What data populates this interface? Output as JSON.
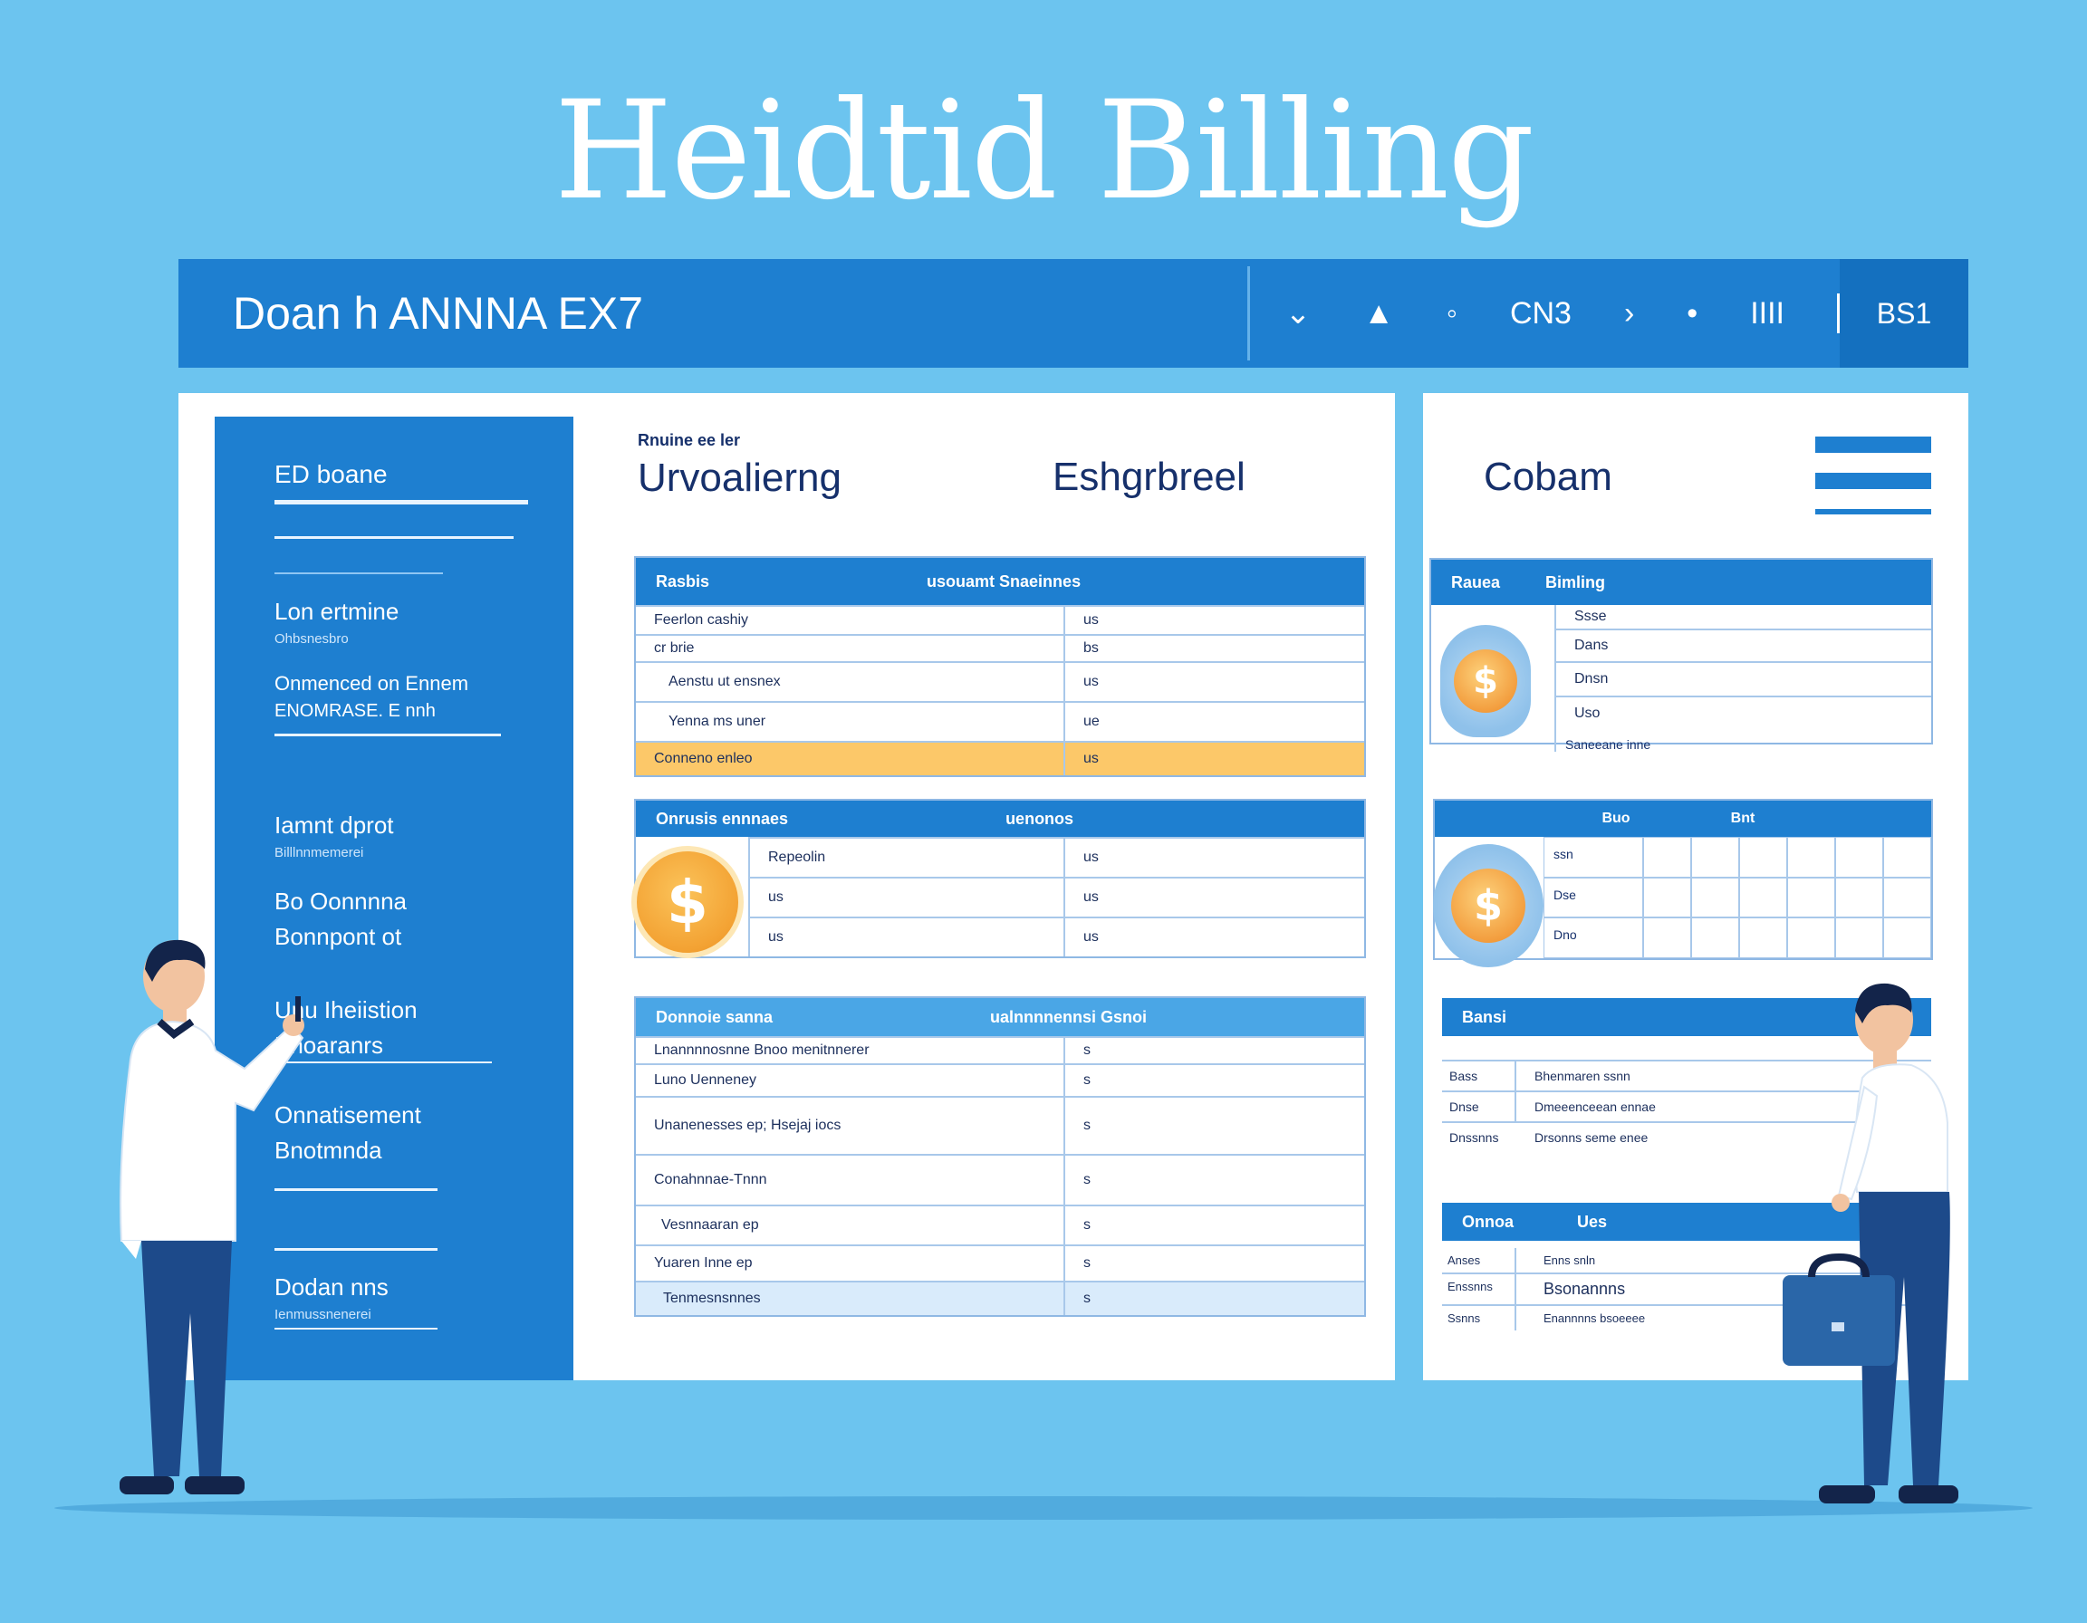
{
  "hero": {
    "title": "Heidtid Billing"
  },
  "topbar": {
    "app_name": "Doan h ANNNA EX7",
    "tools": [
      "⌄",
      "▲",
      "◦",
      "CN3",
      "›",
      "•",
      "IIII",
      "|"
    ],
    "user": "BS1"
  },
  "sidebar": {
    "items": [
      {
        "label": "ED boane",
        "sub": ""
      },
      {
        "label": "Lon ertmine",
        "sub": "Ohbsnesbro"
      },
      {
        "label": "Onmenced on Ennem",
        "sub": "ENOMRASE. E nnh"
      },
      {
        "label": "Iamnt dprot",
        "sub": "Billlnnmemerei"
      },
      {
        "label": "Bo Oonnnna",
        "sub": "Bonnpont ot"
      },
      {
        "label": "Unu Iheiistion",
        "sub": "Bnoaranrs"
      },
      {
        "label": "Onnatisement",
        "sub": "Bnotmnda"
      },
      {
        "label": "Dodan nns",
        "sub": "Ienmussnenerei"
      }
    ]
  },
  "headings": {
    "small": "Rnuine ee ler",
    "col1": "Urvoalierng",
    "col2": "Eshgrbreel",
    "col3": "Cobam"
  },
  "table1": {
    "header": [
      "Rasbis",
      "usouamt Snaeinnes"
    ],
    "rows": [
      {
        "name": "Feerlon cashiy",
        "value": "us"
      },
      {
        "name": "cr brie",
        "value": "bs"
      },
      {
        "name": "Aenstu ut ensnex",
        "value": "us"
      },
      {
        "name": "Yenna ms uner",
        "value": "ue"
      },
      {
        "name": "Conneno enleo",
        "value": "us"
      }
    ]
  },
  "table2": {
    "header": [
      "Onrusis ennnaes",
      "uenonos"
    ],
    "rows": [
      {
        "name": "Repeolin",
        "value": "us"
      },
      {
        "name": "us",
        "value": "us"
      },
      {
        "name": "us",
        "value": "us"
      }
    ]
  },
  "table3": {
    "header": [
      "Donnoie sanna",
      "ualnnnnennsi Gsnoi"
    ],
    "rows": [
      {
        "name": "Lnannnnosnne Bnoo menitnnerer",
        "value": "s"
      },
      {
        "name": "Luno Uenneney",
        "value": "s"
      },
      {
        "name": "Unanenesses ep; Hsejaj iocs",
        "value": "s"
      },
      {
        "name": "Conahnnae-Tnnn",
        "value": "s"
      },
      {
        "name": "Vesnnaaran ep",
        "value": "s"
      },
      {
        "name": "Yuaren Inne ep",
        "value": "s"
      },
      {
        "name": "Tenmesnsnnes",
        "value": "s"
      }
    ]
  },
  "right_table1": {
    "header": [
      "Rauea",
      "Bimling"
    ],
    "rows": [
      "Ssse",
      "Dans",
      "Dnsn",
      "Uso",
      "Saneeane inne"
    ]
  },
  "right_table2": {
    "header": [
      "",
      "Buo",
      "Bnt"
    ],
    "rows": [
      "ssn",
      "Dse",
      "Dno"
    ]
  },
  "right_table3": {
    "header": [
      "Bansi"
    ],
    "rows": [
      {
        "a": "Bass",
        "b": "Bhenmaren ssnn"
      },
      {
        "a": "Dnse",
        "b": "Dmeeenceean ennae"
      },
      {
        "a": "Dnssnns",
        "b": "Drsonns seme enee"
      }
    ]
  },
  "right_table4": {
    "header": [
      "Onnoa",
      "Ues"
    ],
    "rows": [
      {
        "a": "Anses",
        "b": "Enns snln"
      },
      {
        "a": "Enssnns",
        "b": "Bsonannns"
      },
      {
        "a": "Ssnns",
        "b": "Enannnns bsoeeee"
      }
    ]
  },
  "coins": {
    "symbol": "$"
  },
  "colors": {
    "background": "#6cc4ef",
    "primary": "#1e7fd0",
    "highlight": "#fcc869",
    "coin": "#f3a233"
  }
}
